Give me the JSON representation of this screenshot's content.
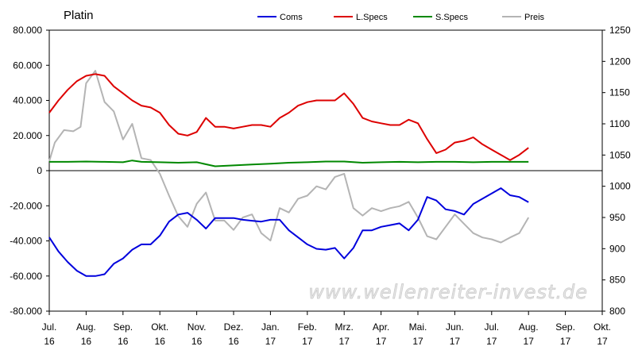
{
  "chart_data": {
    "type": "line",
    "title": "Platin",
    "watermark": "www.wellenreiter-invest.de",
    "legend_position": "top",
    "x_tick_labels": [
      [
        "Jul.",
        "16"
      ],
      [
        "Aug.",
        "16"
      ],
      [
        "Sep.",
        "16"
      ],
      [
        "Okt.",
        "16"
      ],
      [
        "Nov.",
        "16"
      ],
      [
        "Dez.",
        "16"
      ],
      [
        "Jan.",
        "17"
      ],
      [
        "Feb.",
        "17"
      ],
      [
        "Mrz.",
        "17"
      ],
      [
        "Apr.",
        "17"
      ],
      [
        "Mai.",
        "17"
      ],
      [
        "Jun.",
        "17"
      ],
      [
        "Jul.",
        "17"
      ],
      [
        "Aug.",
        "17"
      ],
      [
        "Sep.",
        "17"
      ],
      [
        "Okt.",
        "17"
      ]
    ],
    "y_left": {
      "range": [
        -80000,
        80000
      ],
      "tick_labels": [
        "80.000",
        "60.000",
        "40.000",
        "20.000",
        "0",
        "-20.000",
        "-40.000",
        "-60.000",
        "-80.000"
      ],
      "tick_values": [
        80000,
        60000,
        40000,
        20000,
        0,
        -20000,
        -40000,
        -60000,
        -80000
      ]
    },
    "y_right": {
      "range": [
        800,
        1250
      ],
      "tick_labels": [
        "1250",
        "1200",
        "1150",
        "1100",
        "1050",
        "1000",
        "950",
        "900",
        "850",
        "800"
      ],
      "tick_values": [
        1250,
        1200,
        1150,
        1100,
        1050,
        1000,
        950,
        900,
        850,
        800
      ]
    },
    "series": [
      {
        "name": "Coms",
        "color": "#0000dd",
        "axis": "left",
        "x": [
          0,
          0.25,
          0.5,
          0.75,
          1,
          1.25,
          1.5,
          1.75,
          2,
          2.25,
          2.5,
          2.75,
          3,
          3.25,
          3.5,
          3.75,
          4,
          4.25,
          4.5,
          4.75,
          5,
          5.25,
          5.5,
          5.75,
          6,
          6.25,
          6.5,
          6.75,
          7,
          7.25,
          7.5,
          7.75,
          8,
          8.25,
          8.5,
          8.75,
          9,
          9.25,
          9.5,
          9.75,
          10,
          10.25,
          10.5,
          10.75,
          11,
          11.25,
          11.5,
          11.75,
          12,
          12.25,
          12.5,
          12.75,
          13
        ],
        "values": [
          -38000,
          -46000,
          -52000,
          -57000,
          -60000,
          -60000,
          -59000,
          -53000,
          -50000,
          -45000,
          -42000,
          -42000,
          -37000,
          -29000,
          -25000,
          -24000,
          -28000,
          -33000,
          -27000,
          -27000,
          -27000,
          -28000,
          -28500,
          -29000,
          -28000,
          -28000,
          -34000,
          -38000,
          -42000,
          -44500,
          -45000,
          -44000,
          -50000,
          -44000,
          -34000,
          -34000,
          -32000,
          -31000,
          -30000,
          -34000,
          -28000,
          -15000,
          -17000,
          -22000,
          -23000,
          -25000,
          -19000,
          -16000,
          -13000,
          -10000,
          -14000,
          -15000,
          -18000
        ]
      },
      {
        "name": "L.Specs",
        "color": "#dd0000",
        "axis": "left",
        "x": [
          0,
          0.25,
          0.5,
          0.75,
          1,
          1.25,
          1.5,
          1.75,
          2,
          2.25,
          2.5,
          2.75,
          3,
          3.25,
          3.5,
          3.75,
          4,
          4.25,
          4.5,
          4.75,
          5,
          5.25,
          5.5,
          5.75,
          6,
          6.25,
          6.5,
          6.75,
          7,
          7.25,
          7.5,
          7.75,
          8,
          8.25,
          8.5,
          8.75,
          9,
          9.25,
          9.5,
          9.75,
          10,
          10.25,
          10.5,
          10.75,
          11,
          11.25,
          11.5,
          11.75,
          12,
          12.25,
          12.5,
          12.75,
          13
        ],
        "values": [
          33000,
          40000,
          46000,
          51000,
          54000,
          55000,
          54000,
          48000,
          44000,
          40000,
          37000,
          36000,
          33000,
          26000,
          21000,
          20000,
          22000,
          30000,
          25000,
          25000,
          24000,
          25000,
          26000,
          26000,
          25000,
          30000,
          33000,
          37000,
          39000,
          40000,
          40000,
          40000,
          44000,
          38000,
          30000,
          28000,
          27000,
          26000,
          26000,
          29000,
          27000,
          18000,
          10000,
          12000,
          16000,
          17000,
          19000,
          15000,
          12000,
          9000,
          6000,
          9000,
          13000
        ]
      },
      {
        "name": "S.Specs",
        "color": "#008800",
        "axis": "left",
        "x": [
          0,
          0.5,
          1,
          1.5,
          2,
          2.25,
          2.5,
          3,
          3.5,
          4,
          4.5,
          5,
          5.5,
          6,
          6.5,
          7,
          7.5,
          8,
          8.5,
          9,
          9.5,
          10,
          10.5,
          11,
          11.5,
          12,
          12.5,
          13
        ],
        "values": [
          5000,
          5000,
          5200,
          5000,
          4800,
          5800,
          5000,
          4800,
          4500,
          4800,
          2500,
          3000,
          3500,
          4000,
          4500,
          4800,
          5200,
          5200,
          4500,
          4800,
          5000,
          4800,
          5000,
          5000,
          4800,
          5000,
          5000,
          5000
        ]
      },
      {
        "name": "Preis",
        "color": "#b4b4b4",
        "axis": "right",
        "x": [
          0,
          0.15,
          0.4,
          0.65,
          0.85,
          1,
          1.25,
          1.5,
          1.75,
          2,
          2.25,
          2.5,
          2.75,
          3,
          3.25,
          3.5,
          3.75,
          4,
          4.25,
          4.5,
          4.75,
          5,
          5.25,
          5.5,
          5.75,
          6,
          6.25,
          6.5,
          6.75,
          7,
          7.25,
          7.5,
          7.75,
          8,
          8.25,
          8.5,
          8.75,
          9,
          9.25,
          9.5,
          9.75,
          10,
          10.25,
          10.5,
          10.75,
          11,
          11.25,
          11.5,
          11.75,
          12,
          12.25,
          12.5,
          12.75,
          13
        ],
        "values": [
          1040,
          1070,
          1090,
          1088,
          1095,
          1165,
          1185,
          1135,
          1120,
          1075,
          1100,
          1045,
          1042,
          1020,
          985,
          952,
          935,
          972,
          990,
          945,
          945,
          930,
          950,
          955,
          925,
          913,
          965,
          958,
          980,
          985,
          1000,
          995,
          1015,
          1020,
          965,
          953,
          965,
          960,
          965,
          968,
          975,
          950,
          920,
          915,
          935,
          955,
          940,
          925,
          918,
          915,
          910,
          918,
          925,
          950
        ]
      }
    ]
  }
}
